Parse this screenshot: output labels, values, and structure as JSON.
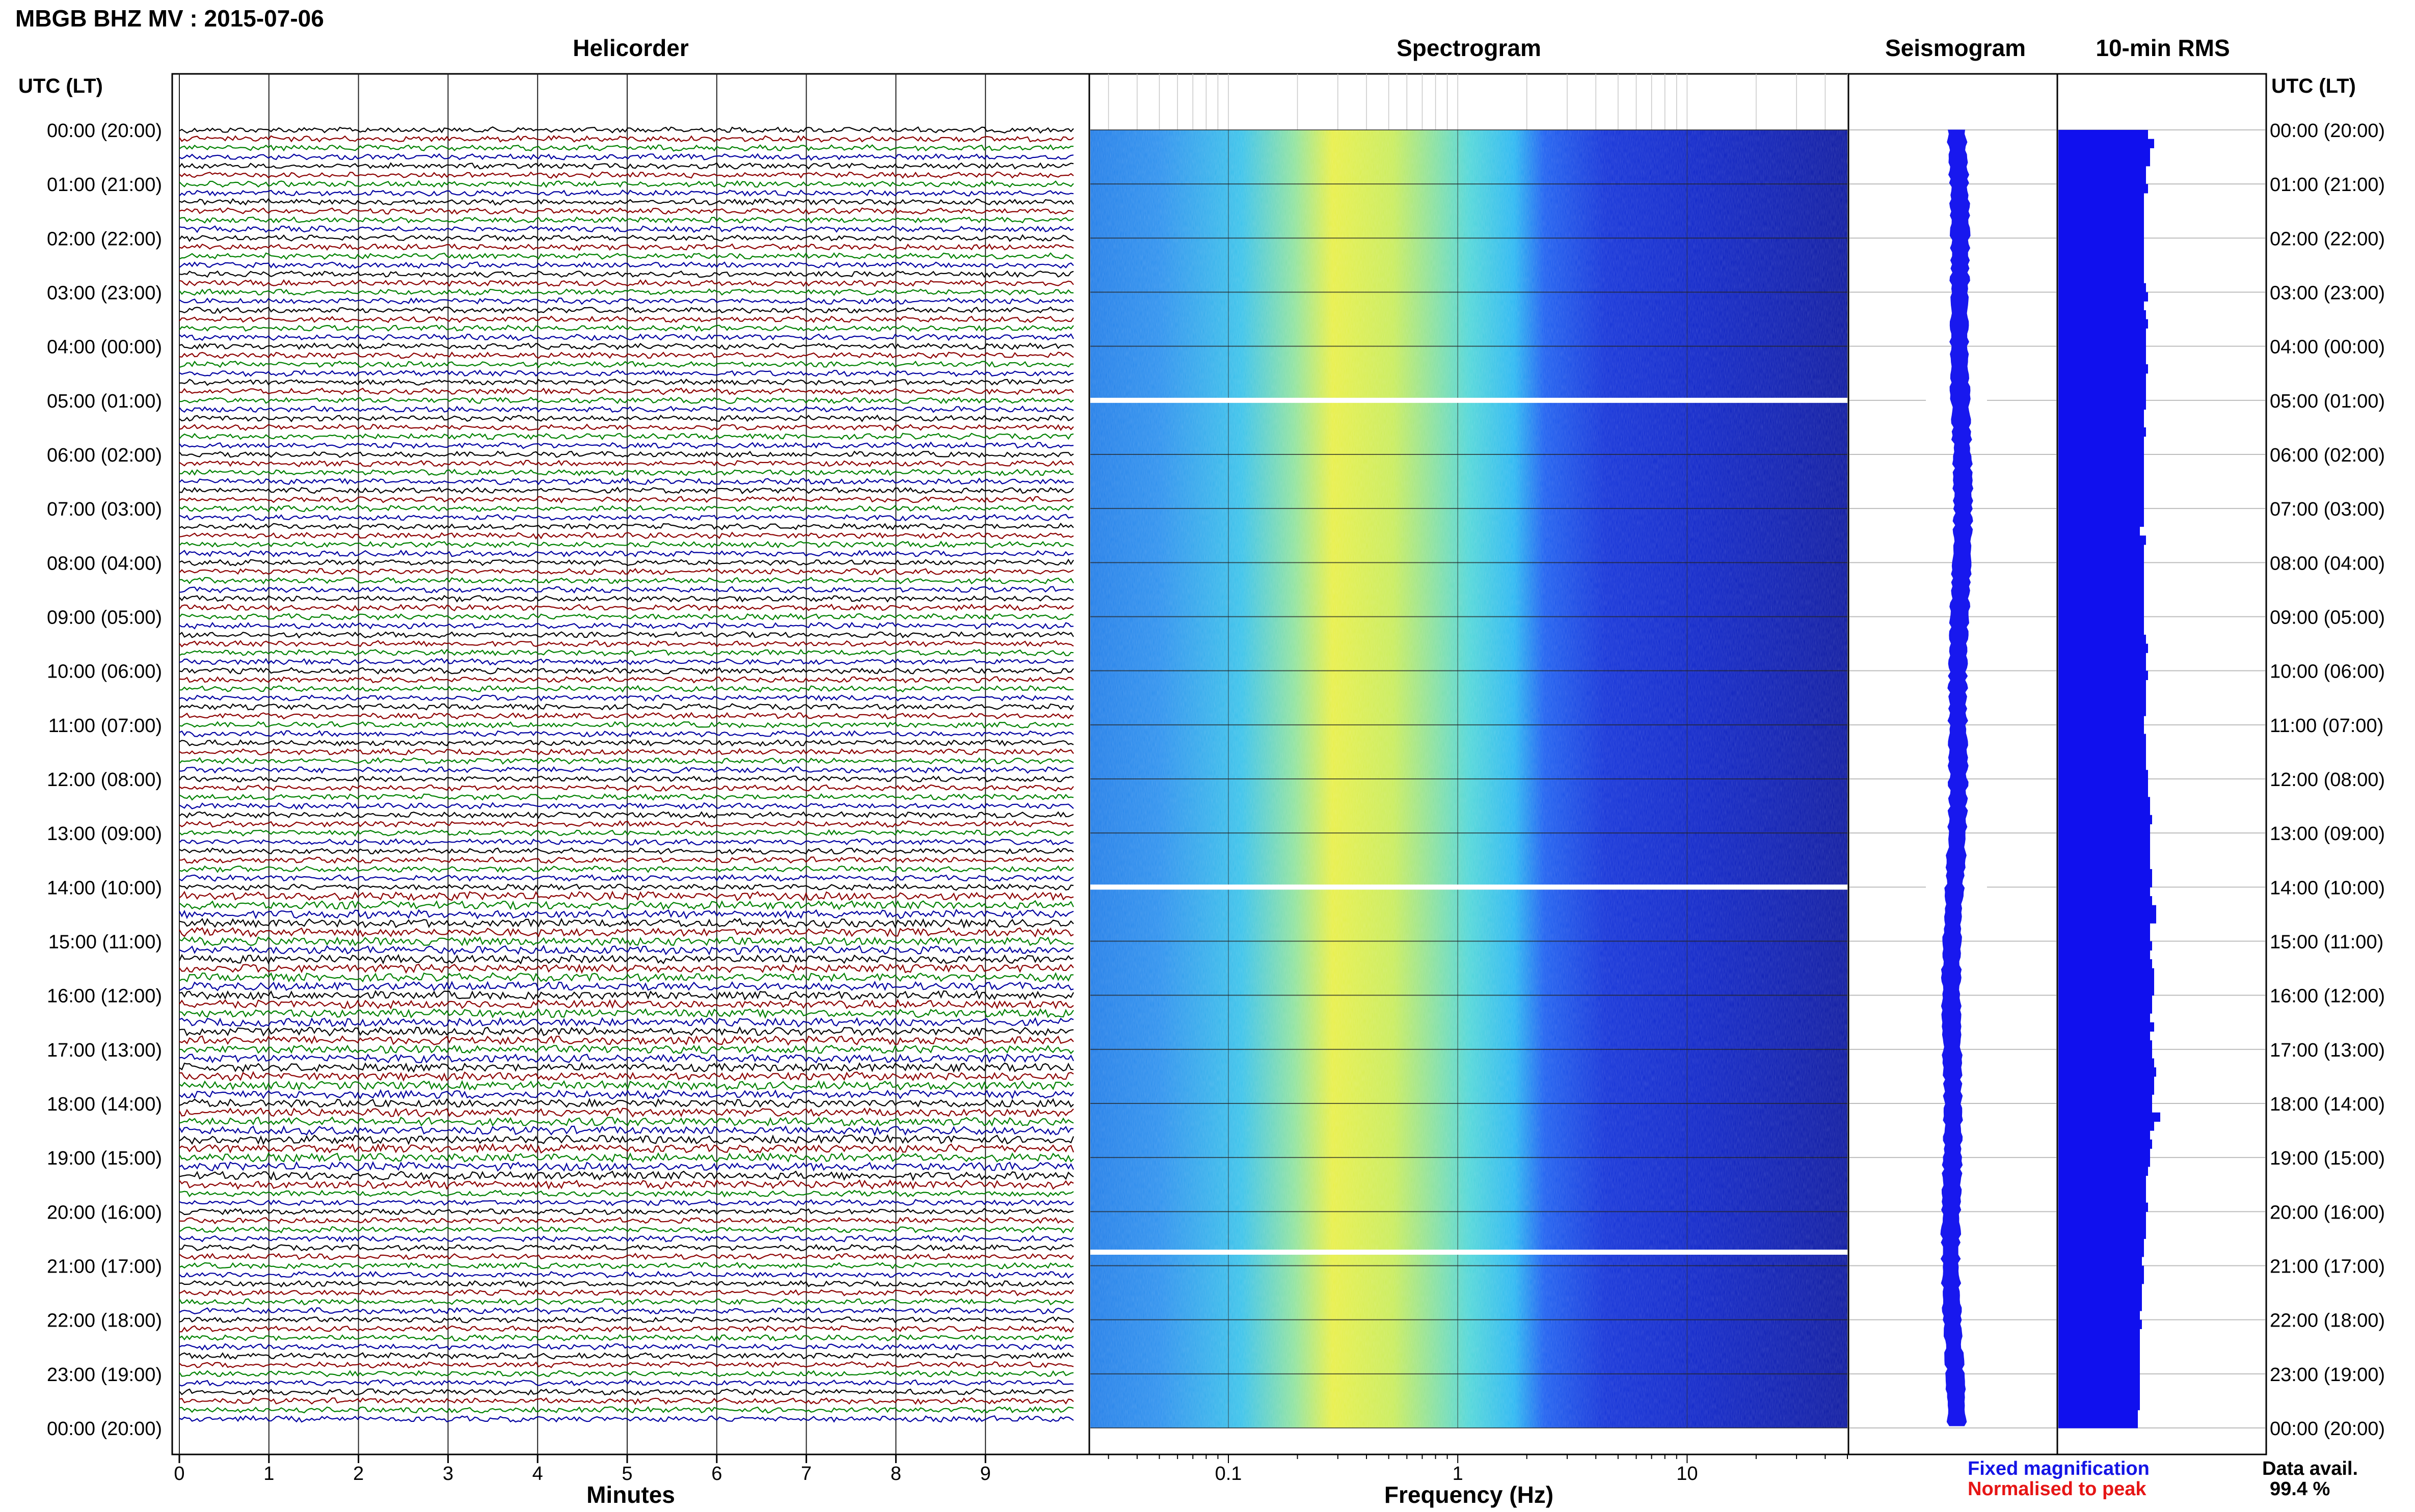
{
  "header": {
    "title": "MBGB BHZ MV : 2015-07-06",
    "utc_label_left": "UTC (LT)",
    "utc_label_right": "UTC (LT)"
  },
  "panels": {
    "helicorder": "Helicorder",
    "spectrogram": "Spectrogram",
    "seismogram": "Seismogram",
    "rms": "10-min RMS"
  },
  "axes": {
    "minutes_label": "Minutes",
    "frequency_label": "Frequency (Hz)",
    "minutes_ticks": [
      "0",
      "1",
      "2",
      "3",
      "4",
      "5",
      "6",
      "7",
      "8",
      "9"
    ],
    "frequency_ticks": [
      "0.1",
      "1",
      "10"
    ],
    "hour_labels": [
      "00:00 (20:00)",
      "01:00 (21:00)",
      "02:00 (22:00)",
      "03:00 (23:00)",
      "04:00 (00:00)",
      "05:00 (01:00)",
      "06:00 (02:00)",
      "07:00 (03:00)",
      "08:00 (04:00)",
      "09:00 (05:00)",
      "10:00 (06:00)",
      "11:00 (07:00)",
      "12:00 (08:00)",
      "13:00 (09:00)",
      "14:00 (10:00)",
      "15:00 (11:00)",
      "16:00 (12:00)",
      "17:00 (13:00)",
      "18:00 (14:00)",
      "19:00 (15:00)",
      "20:00 (16:00)",
      "21:00 (17:00)",
      "22:00 (18:00)",
      "23:00 (19:00)",
      "00:00 (20:00)"
    ]
  },
  "legend": {
    "fixed": "Fixed magnification",
    "normalised": "Normalised to peak",
    "fixed_color": "#1515e6",
    "normalised_color": "#e61515"
  },
  "availability": {
    "label": "Data avail.",
    "value": "99.4 %"
  },
  "colors": {
    "trace_cycle": [
      "#000000",
      "#8b0000",
      "#008000",
      "#0000a0"
    ],
    "rms_bar": "#1010ee",
    "seismogram": "#1818ee"
  },
  "chart_data": {
    "type": "heatmap",
    "time_range_utc_hours": [
      0,
      24
    ],
    "helicorder_minutes_range": [
      0,
      10
    ],
    "frequency_range_hz": [
      0.025,
      50
    ],
    "frequency_scale": "log",
    "data_gaps_utc_hours": [
      5.0,
      14.0,
      20.75
    ],
    "rms_10min_relative": [
      0.88,
      0.94,
      0.9,
      0.9,
      0.86,
      0.86,
      0.88,
      0.84,
      0.84,
      0.84,
      0.84,
      0.84,
      0.84,
      0.84,
      0.84,
      0.84,
      0.84,
      0.86,
      0.88,
      0.84,
      0.86,
      0.88,
      0.86,
      0.86,
      0.86,
      0.86,
      0.88,
      0.86,
      0.86,
      0.86,
      0.86,
      0.84,
      0.84,
      0.86,
      0.84,
      0.84,
      0.84,
      0.84,
      0.84,
      0.84,
      0.84,
      0.84,
      0.84,
      0.84,
      0.8,
      0.86,
      0.84,
      0.84,
      0.84,
      0.84,
      0.84,
      0.84,
      0.84,
      0.84,
      0.84,
      0.84,
      0.86,
      0.88,
      0.86,
      0.86,
      0.88,
      0.86,
      0.86,
      0.86,
      0.86,
      0.84,
      0.84,
      0.86,
      0.86,
      0.86,
      0.86,
      0.88,
      0.88,
      0.88,
      0.9,
      0.9,
      0.92,
      0.9,
      0.9,
      0.9,
      0.9,
      0.9,
      0.92,
      0.92,
      0.9,
      0.92,
      0.96,
      0.96,
      0.9,
      0.9,
      0.92,
      0.9,
      0.92,
      0.94,
      0.94,
      0.94,
      0.92,
      0.92,
      0.9,
      0.94,
      0.9,
      0.92,
      0.92,
      0.94,
      0.96,
      0.94,
      0.94,
      0.92,
      0.92,
      1.0,
      0.94,
      0.9,
      0.92,
      0.9,
      0.9,
      0.88,
      0.86,
      0.86,
      0.86,
      0.88,
      0.86,
      0.86,
      0.86,
      0.84,
      0.84,
      0.82,
      0.84,
      0.84,
      0.82,
      0.82,
      0.82,
      0.8,
      0.82,
      0.8,
      0.8,
      0.8,
      0.8,
      0.8,
      0.8,
      0.8,
      0.8,
      0.8,
      0.78,
      0.78
    ]
  }
}
